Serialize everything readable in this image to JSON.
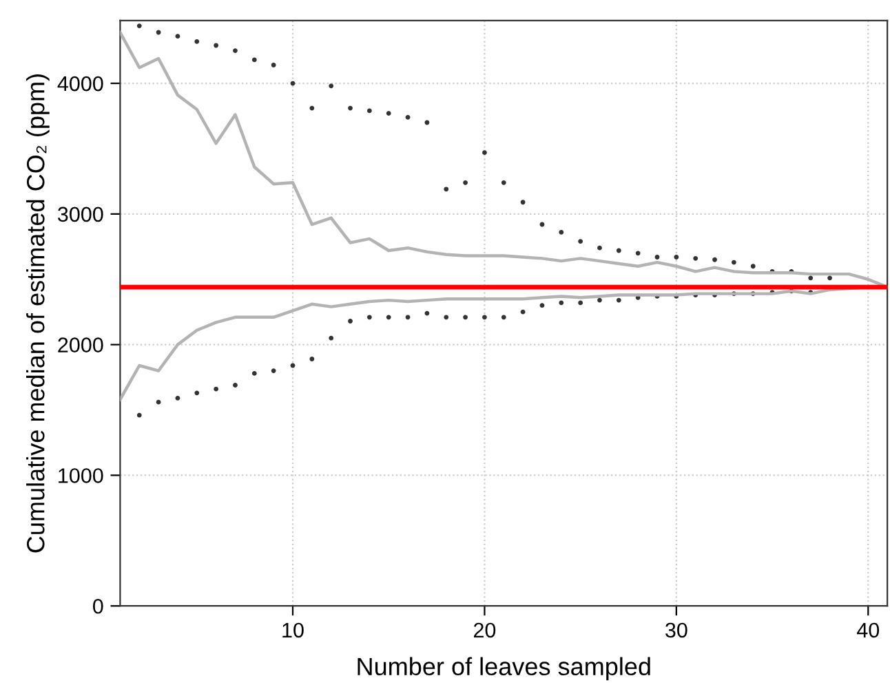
{
  "chart_data": {
    "type": "line",
    "xlabel": "Number of leaves sampled",
    "ylabel": "Cumulative median of estimated CO₂ (ppm)",
    "xlim": [
      1,
      41
    ],
    "ylim": [
      0,
      4480
    ],
    "xticks": [
      10,
      20,
      30,
      40
    ],
    "yticks": [
      0,
      1000,
      2000,
      3000,
      4000
    ],
    "grid": true,
    "marker": "none",
    "line_style": "solid",
    "series": [
      {
        "type": "scatter",
        "color": "#333333",
        "x": [
          2,
          2,
          3,
          3,
          4,
          4,
          5,
          5,
          6,
          6,
          7,
          7,
          8,
          8,
          9,
          9,
          10,
          10,
          11,
          11,
          12,
          12,
          13,
          13,
          14,
          14,
          15,
          15,
          16,
          16,
          17,
          17,
          18,
          18,
          19,
          19,
          20,
          20,
          21,
          21,
          22,
          22,
          23,
          23,
          24,
          24,
          25,
          25,
          26,
          26,
          27,
          27,
          28,
          28,
          29,
          29,
          30,
          30,
          31,
          31,
          32,
          32,
          33,
          33,
          34,
          34,
          35,
          35,
          36,
          36,
          37,
          37,
          38
        ],
        "values": [
          4440,
          1460,
          4390,
          1560,
          4360,
          1590,
          4320,
          1630,
          4290,
          1660,
          4250,
          1690,
          4180,
          1780,
          4140,
          1800,
          4000,
          1840,
          3810,
          1890,
          3980,
          2050,
          3810,
          2180,
          3790,
          2210,
          3770,
          2210,
          3740,
          2210,
          3700,
          2240,
          3190,
          2210,
          3240,
          2210,
          3470,
          2210,
          3240,
          2210,
          3090,
          2250,
          2920,
          2300,
          2860,
          2320,
          2790,
          2320,
          2740,
          2340,
          2720,
          2340,
          2700,
          2360,
          2670,
          2370,
          2670,
          2370,
          2660,
          2380,
          2650,
          2380,
          2630,
          2390,
          2600,
          2390,
          2560,
          2400,
          2560,
          2410,
          2510,
          2400,
          2510
        ]
      },
      {
        "color": "#b3b3b3",
        "x": [
          1,
          2,
          3,
          4,
          5,
          6,
          7,
          8,
          9,
          10,
          11,
          12,
          13,
          14,
          15,
          16,
          17,
          18,
          19,
          20,
          21,
          22,
          23,
          24,
          25,
          26,
          27,
          28,
          29,
          30,
          31,
          32,
          33,
          34,
          35,
          36,
          37,
          38,
          39,
          40,
          41
        ],
        "values": [
          4390,
          4120,
          4190,
          3910,
          3800,
          3540,
          3760,
          3360,
          3230,
          3240,
          2920,
          2970,
          2780,
          2810,
          2720,
          2740,
          2710,
          2690,
          2680,
          2680,
          2680,
          2670,
          2660,
          2640,
          2660,
          2640,
          2620,
          2600,
          2630,
          2600,
          2560,
          2590,
          2560,
          2550,
          2550,
          2550,
          2540,
          2540,
          2540,
          2500,
          2440
        ]
      },
      {
        "color": "#b3b3b3",
        "x": [
          1,
          2,
          3,
          4,
          5,
          6,
          7,
          8,
          9,
          10,
          11,
          12,
          13,
          14,
          15,
          16,
          17,
          18,
          19,
          20,
          21,
          22,
          23,
          24,
          25,
          26,
          27,
          28,
          29,
          30,
          31,
          32,
          33,
          34,
          35,
          36,
          37,
          38,
          39,
          40,
          41
        ],
        "values": [
          1580,
          1840,
          1800,
          2000,
          2110,
          2170,
          2210,
          2210,
          2210,
          2260,
          2310,
          2290,
          2310,
          2330,
          2340,
          2330,
          2340,
          2350,
          2350,
          2350,
          2350,
          2350,
          2360,
          2370,
          2360,
          2370,
          2380,
          2380,
          2380,
          2380,
          2390,
          2390,
          2390,
          2390,
          2390,
          2410,
          2390,
          2420,
          2430,
          2440,
          2440
        ]
      }
    ],
    "ref_lines": [
      {
        "axis": "y",
        "value": 2440,
        "color": "#ff0000",
        "line_style": "solid"
      }
    ]
  }
}
